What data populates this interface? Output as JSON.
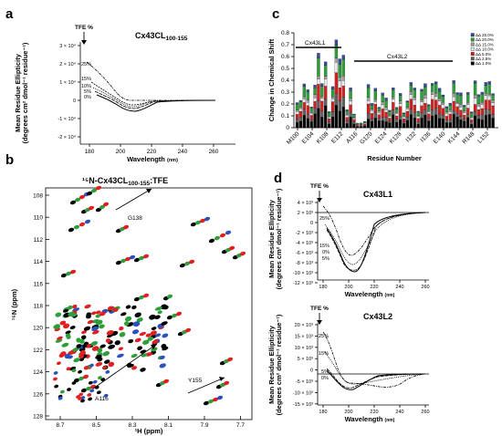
{
  "panels": {
    "a": {
      "label": "a"
    },
    "b": {
      "label": "b"
    },
    "c": {
      "label": "c"
    },
    "d": {
      "label": "d"
    }
  },
  "panel_a": {
    "title": "Cx43CL",
    "title_sub": "100-155",
    "tfe_label": "TFE %",
    "ylabel_1": "Mean Residue Ellipticity",
    "ylabel_2": "(degrees cm² dmol⁻¹ residue⁻¹)",
    "xlabel": "Wavelength",
    "xlabel_unit": "(nm)",
    "yticks": [
      "3 × 10⁴",
      "2 × 10⁴",
      "1 × 10⁴",
      "0",
      "-1 × 10⁴",
      "-2 × 10⁴"
    ],
    "xticks": [
      "180",
      "200",
      "220",
      "240",
      "260"
    ],
    "curve_labels": [
      "25%",
      "15%",
      "10%",
      "5%",
      "0%"
    ]
  },
  "panel_b": {
    "title_prefix": "¹⁵N-Cx43CL",
    "title_sub": "100-155",
    "title_suffix": ":TFE",
    "ylabel": "¹⁵N (ppm)",
    "xlabel": "¹H (ppm)",
    "yticks": [
      "108",
      "110",
      "112",
      "114",
      "116",
      "118",
      "120",
      "122",
      "124",
      "126",
      "128"
    ],
    "xticks": [
      "8.7",
      "8.5",
      "8.3",
      "8.1",
      "7.9",
      "7.7"
    ],
    "annotations": [
      "G138",
      "A116",
      "Y155"
    ],
    "colors": {
      "c0": "#000000",
      "c5": "#2e9e3a",
      "c15": "#e02020",
      "c25": "#2a52be"
    }
  },
  "panel_c": {
    "ylabel": "Change in Chemical Shift",
    "xlabel": "Residue Number",
    "yticks": [
      "0",
      "0.1",
      "0.2",
      "0.3",
      "0.4",
      "0.5",
      "0.6",
      "0.7",
      "0.8"
    ],
    "xticks": [
      "M100",
      "E104",
      "K108",
      "E112",
      "A116",
      "G120",
      "E124",
      "K128",
      "I132",
      "I136",
      "E140",
      "K144",
      "R148",
      "L152"
    ],
    "region_labels": [
      "Cx43L1",
      "Cx43L2"
    ],
    "legend": [
      "ΔΔ 25.0%",
      "ΔΔ 20.0%",
      "ΔΔ 15.0%",
      "ΔΔ 10.0%",
      "ΔΔ 5.0%",
      "ΔΔ 2.5%",
      "ΔΔ 1.0%"
    ],
    "legend_colors": [
      "#3a4a9a",
      "#2e9e3a",
      "#a0a0a0",
      "#e8e8e8",
      "#d42020",
      "#606060",
      "#000000"
    ]
  },
  "panel_d": {
    "tfe_label": "TFE %",
    "ylabel_1": "Mean Residue Ellipticity",
    "ylabel_2": "(degrees cm² dmol⁻¹ residue⁻¹)",
    "xlabel": "Wavelength",
    "xlabel_unit": "(nm)",
    "xticks": [
      "180",
      "200",
      "220",
      "240",
      "260"
    ],
    "top": {
      "title": "Cx43L1",
      "yticks": [
        "4 × 10³",
        "2 × 10³",
        "0",
        "-2 × 10³",
        "-4 × 10³",
        "-6 × 10³",
        "-8 × 10³",
        "-10 × 10³",
        "-12 × 10³"
      ],
      "curve_labels": [
        "25%",
        "15%",
        "0%",
        "5%"
      ]
    },
    "bottom": {
      "title": "Cx43L2",
      "yticks": [
        "20 × 10³",
        "15 × 10³",
        "10 × 10³",
        "5 × 10³",
        "0",
        "-5 × 10³",
        "-10 × 10³",
        "-15 × 10³"
      ],
      "curve_labels": [
        "25%",
        "15%",
        "5%",
        "0%"
      ]
    }
  }
}
